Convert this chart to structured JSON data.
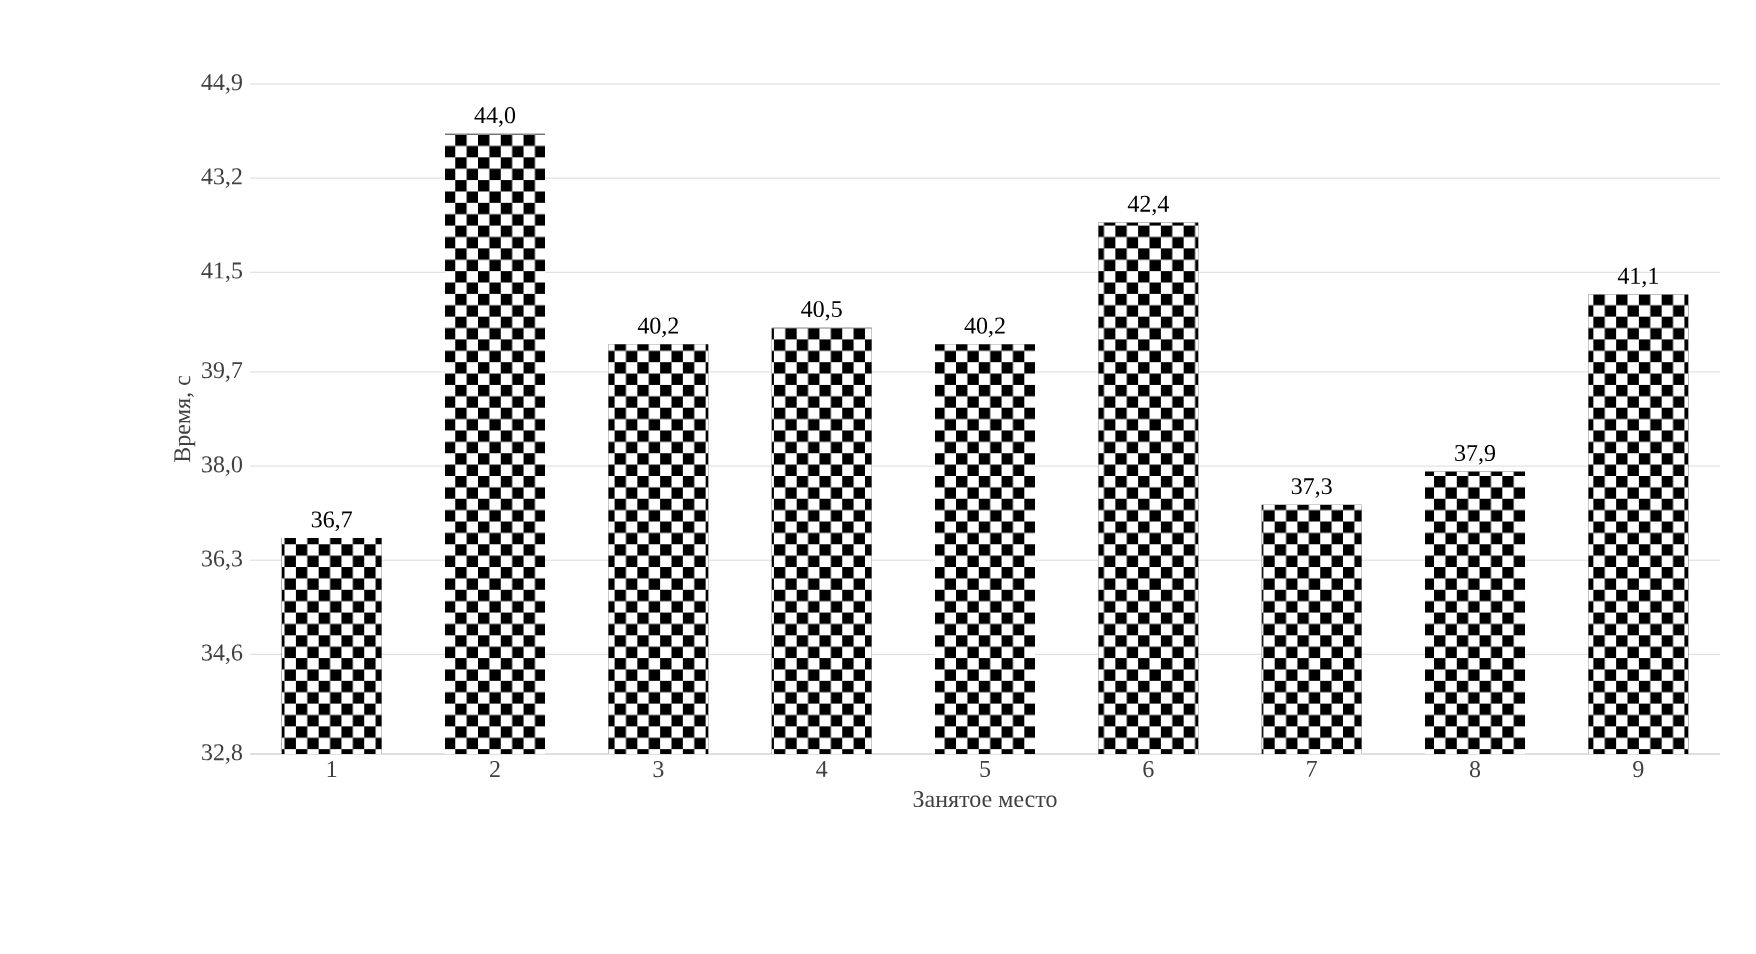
{
  "chart_data": {
    "type": "bar",
    "xlabel": "Занятое место",
    "ylabel": "Время, с",
    "categories": [
      "1",
      "2",
      "3",
      "4",
      "5",
      "6",
      "7",
      "8",
      "9"
    ],
    "values": [
      36.7,
      44.0,
      40.2,
      40.5,
      40.2,
      42.4,
      37.3,
      37.9,
      41.1
    ],
    "value_labels": [
      "36,7",
      "44,0",
      "40,2",
      "40,5",
      "40,2",
      "42,4",
      "37,3",
      "37,9",
      "41,1"
    ],
    "color": "#000000",
    "ylim": [
      32.8,
      44.9
    ],
    "yticks": [
      {
        "value": 32.8,
        "label": "32,8"
      },
      {
        "value": 34.6,
        "label": "34,6"
      },
      {
        "value": 36.3,
        "label": "36,3"
      },
      {
        "value": 38.0,
        "label": "38,0"
      },
      {
        "value": 39.7,
        "label": "39,7"
      },
      {
        "value": 41.5,
        "label": "41,5"
      },
      {
        "value": 43.2,
        "label": "43,2"
      },
      {
        "value": 44.9,
        "label": "44,9"
      }
    ],
    "grid": "y"
  }
}
